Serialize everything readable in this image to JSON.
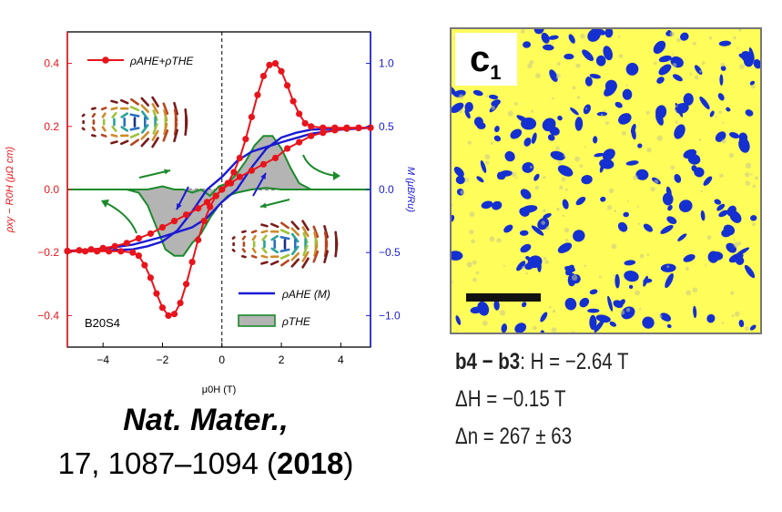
{
  "chart_data": {
    "type": "line",
    "sample_label": "B20S4",
    "xlabel": "μ0H (T)",
    "ylabel_left": "ρxy − R0H (μΩ cm)",
    "ylabel_right": "M (μB/Ru)",
    "xlim": [
      -5.2,
      5
    ],
    "ylim_left": [
      -0.5,
      0.5
    ],
    "ylim_right": [
      -1.25,
      1.25
    ],
    "x_ticks": [
      -4,
      -2,
      0,
      2,
      4
    ],
    "x_tick_labels": [
      "−4",
      "−2",
      "0",
      "2",
      "4"
    ],
    "y_left_ticks": [
      -0.4,
      -0.2,
      0.0,
      0.2,
      0.4
    ],
    "y_left_tick_labels": [
      "−0.4",
      "−0.2",
      "0.0",
      "0.2",
      "0.4"
    ],
    "y_right_ticks": [
      -1.0,
      -0.5,
      0.0,
      0.5,
      1.0
    ],
    "y_right_tick_labels": [
      "−1.0",
      "−0.5",
      "0.0",
      "0.5",
      "1.0"
    ],
    "colors": {
      "red": "#e8141c",
      "blue": "#1a1ad6",
      "green": "#1a8a2a",
      "fill": "#b4b4b4",
      "left_axis": "#e8141c",
      "right_axis": "#1a1ad6"
    },
    "legend": [
      {
        "name": "ρAHE+ρTHE",
        "style": "red-marker-line"
      },
      {
        "name": "ρAHE (M)",
        "style": "blue-line"
      },
      {
        "name": "ρTHE",
        "style": "green-filled"
      }
    ],
    "series": [
      {
        "name": "ρAHE+ρTHE (sweep up)",
        "x": [
          -5.2,
          -4.8,
          -4.4,
          -4.0,
          -3.6,
          -3.2,
          -2.8,
          -2.4,
          -2.0,
          -1.6,
          -1.2,
          -0.8,
          -0.5,
          -0.2,
          0.0,
          0.2,
          0.4,
          0.6,
          0.8,
          1.0,
          1.2,
          1.4,
          1.6,
          1.8,
          2.0,
          2.2,
          2.4,
          2.6,
          2.8,
          3.0,
          3.4,
          3.8,
          4.2,
          4.6,
          5.0
        ],
        "y": [
          -0.195,
          -0.193,
          -0.19,
          -0.186,
          -0.18,
          -0.17,
          -0.155,
          -0.14,
          -0.12,
          -0.1,
          -0.08,
          -0.06,
          -0.04,
          -0.02,
          0.0,
          0.02,
          0.055,
          0.1,
          0.16,
          0.23,
          0.3,
          0.36,
          0.395,
          0.4,
          0.375,
          0.33,
          0.28,
          0.24,
          0.21,
          0.2,
          0.196,
          0.196,
          0.196,
          0.196,
          0.196
        ]
      },
      {
        "name": "ρAHE+ρTHE (sweep down)",
        "x": [
          5.0,
          4.6,
          4.2,
          3.8,
          3.4,
          3.0,
          2.6,
          2.2,
          1.8,
          1.4,
          1.0,
          0.6,
          0.3,
          0.0,
          -0.2,
          -0.4,
          -0.6,
          -0.8,
          -1.0,
          -1.2,
          -1.4,
          -1.6,
          -1.8,
          -2.0,
          -2.2,
          -2.4,
          -2.6,
          -2.8,
          -3.0,
          -3.4,
          -3.8,
          -4.2,
          -4.6,
          -5.2
        ],
        "y": [
          0.196,
          0.195,
          0.193,
          0.188,
          0.18,
          0.17,
          0.15,
          0.13,
          0.1,
          0.08,
          0.06,
          0.04,
          0.02,
          0.0,
          -0.02,
          -0.055,
          -0.1,
          -0.16,
          -0.23,
          -0.3,
          -0.36,
          -0.395,
          -0.4,
          -0.375,
          -0.33,
          -0.28,
          -0.24,
          -0.21,
          -0.2,
          -0.196,
          -0.196,
          -0.196,
          -0.196,
          -0.196
        ]
      },
      {
        "name": "ρAHE (M) (sweep up)",
        "x": [
          -5.2,
          -4.0,
          -3.0,
          -2.0,
          -1.5,
          -1.0,
          -0.5,
          0.0,
          0.5,
          1.0,
          1.5,
          2.0,
          2.5,
          3.0,
          4.0,
          5.0
        ],
        "y": [
          -0.195,
          -0.188,
          -0.175,
          -0.15,
          -0.135,
          -0.12,
          -0.09,
          -0.04,
          0.0,
          0.07,
          0.13,
          0.165,
          0.18,
          0.19,
          0.194,
          0.196
        ]
      },
      {
        "name": "ρAHE (M) (sweep down)",
        "x": [
          5.0,
          4.0,
          3.0,
          2.0,
          1.5,
          1.0,
          0.5,
          0.0,
          -0.5,
          -1.0,
          -1.5,
          -2.0,
          -2.5,
          -3.0,
          -4.0,
          -5.2
        ],
        "y": [
          0.196,
          0.19,
          0.177,
          0.15,
          0.135,
          0.12,
          0.09,
          0.04,
          0.0,
          -0.07,
          -0.13,
          -0.165,
          -0.18,
          -0.19,
          -0.194,
          -0.196
        ]
      },
      {
        "name": "ρTHE (sweep up)",
        "x": [
          -5.2,
          -4.0,
          -3.0,
          -2.5,
          -2.0,
          -1.6,
          -1.3,
          -1.0,
          -0.7,
          -0.4,
          -0.1,
          0.2,
          0.5,
          0.8,
          1.1,
          1.4,
          1.7,
          2.0,
          2.3,
          2.6,
          3.0,
          4.0,
          5.0
        ],
        "y": [
          0.0,
          0.0,
          0.0,
          0.0,
          0.01,
          0.0,
          0.0,
          -0.01,
          0.0,
          -0.02,
          0.01,
          0.02,
          0.05,
          0.09,
          0.14,
          0.17,
          0.17,
          0.13,
          0.07,
          0.02,
          0.0,
          0.0,
          0.0
        ]
      },
      {
        "name": "ρTHE (sweep down)",
        "x": [
          5.0,
          4.0,
          3.0,
          2.5,
          2.0,
          1.5,
          1.0,
          0.5,
          0.2,
          -0.1,
          -0.4,
          -0.7,
          -1.0,
          -1.3,
          -1.6,
          -1.9,
          -2.2,
          -2.5,
          -2.8,
          -3.2,
          -4.0,
          -5.2
        ],
        "y": [
          0.0,
          0.0,
          0.0,
          0.0,
          0.0,
          0.005,
          0.0,
          -0.01,
          -0.02,
          -0.05,
          -0.09,
          -0.14,
          -0.17,
          -0.21,
          -0.21,
          -0.19,
          -0.12,
          -0.05,
          -0.01,
          0.0,
          0.0,
          0.0
        ]
      }
    ]
  },
  "citation": {
    "journal": "Nat. Mater.,",
    "ref_prefix": "17, 1087–1094 (",
    "year": "2018",
    "ref_suffix": ")"
  },
  "micrograph": {
    "panel_label": "c",
    "panel_subscript": "1",
    "background_color": "#fffd5a",
    "domain_color": "#1530d0",
    "caption": {
      "line1_bold": "b4 − b3",
      "line1_rest": ": H = −2.64 T",
      "line2": "ΔH = −0.15 T",
      "line3": "Δn = 267 ± 63"
    }
  }
}
